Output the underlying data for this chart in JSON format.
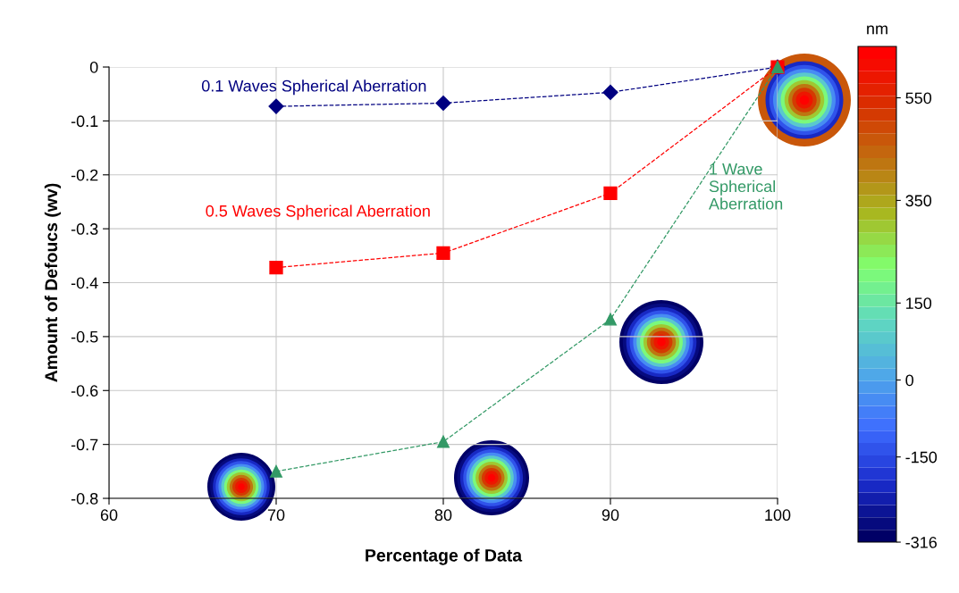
{
  "chart_data": {
    "type": "line",
    "xlabel": "Percentage of Data",
    "ylabel": "Amount of Defoucs (wv)",
    "x": [
      70,
      80,
      90,
      100
    ],
    "series": [
      {
        "name": "0.1 Waves Spherical Aberration",
        "color": "#000080",
        "marker": "diamond",
        "values": [
          -0.073,
          -0.067,
          -0.047,
          0
        ]
      },
      {
        "name": "0.5 Waves Spherical Aberration",
        "color": "#ff0000",
        "marker": "square",
        "values": [
          -0.372,
          -0.345,
          -0.234,
          0
        ]
      },
      {
        "name": "1 Wave\nSpherical\nAberration",
        "color": "#339966",
        "marker": "triangle",
        "values": [
          -0.75,
          -0.695,
          -0.468,
          0
        ]
      }
    ],
    "line_style": "dashed",
    "xlim": [
      60,
      100
    ],
    "xticks": [
      60,
      70,
      80,
      90,
      100
    ],
    "ylim": [
      -0.8,
      0
    ],
    "yticks": [
      -0.8,
      -0.7,
      -0.6,
      -0.5,
      -0.4,
      -0.3,
      -0.2,
      -0.1,
      0
    ],
    "grid": true,
    "legend": false,
    "clabel": "nm",
    "clim": [
      -316,
      650
    ],
    "cticks": [
      -316,
      -150,
      0,
      150,
      350,
      550
    ]
  }
}
